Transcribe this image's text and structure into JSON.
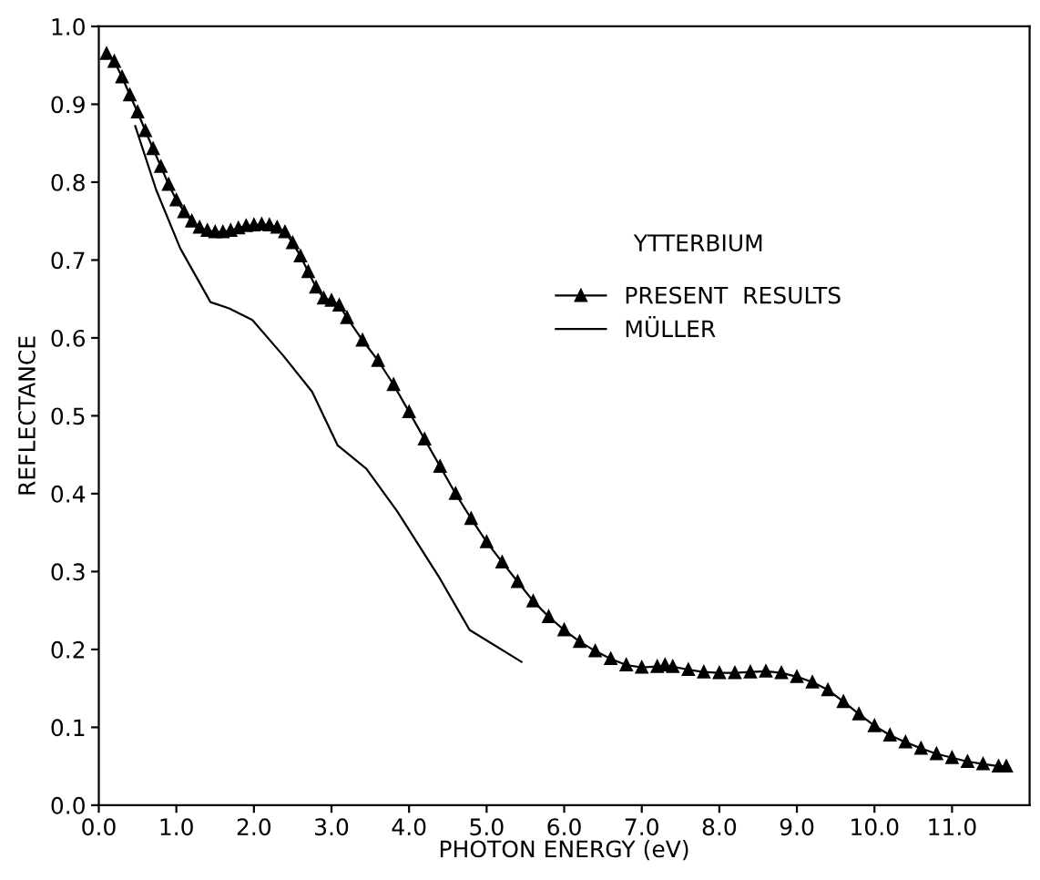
{
  "chart_data": {
    "type": "line",
    "xlabel": "PHOTON ENERGY (eV)",
    "ylabel": "REFLECTANCE",
    "legend_title": "YTTERBIUM",
    "legend": "top right",
    "grid": false,
    "xlim": [
      0,
      12
    ],
    "ylim": [
      0,
      1.0
    ],
    "xticks": [
      {
        "value": 0,
        "label": "0.0"
      },
      {
        "value": 1,
        "label": "1.0"
      },
      {
        "value": 2,
        "label": "2.0"
      },
      {
        "value": 3,
        "label": "3.0"
      },
      {
        "value": 4,
        "label": "4.0"
      },
      {
        "value": 5,
        "label": "5.0"
      },
      {
        "value": 6,
        "label": "6.0"
      },
      {
        "value": 7,
        "label": "7.0"
      },
      {
        "value": 8,
        "label": "8.0"
      },
      {
        "value": 9,
        "label": "9.0"
      },
      {
        "value": 10,
        "label": "10.0"
      },
      {
        "value": 11,
        "label": "11.0"
      }
    ],
    "yticks": [
      {
        "value": 0,
        "label": "0.0"
      },
      {
        "value": 0.1,
        "label": "0.1"
      },
      {
        "value": 0.2,
        "label": "0.2"
      },
      {
        "value": 0.3,
        "label": "0.3"
      },
      {
        "value": 0.4,
        "label": "0.4"
      },
      {
        "value": 0.5,
        "label": "0.5"
      },
      {
        "value": 0.6,
        "label": "0.6"
      },
      {
        "value": 0.7,
        "label": "0.7"
      },
      {
        "value": 0.8,
        "label": "0.8"
      },
      {
        "value": 0.9,
        "label": "0.9"
      },
      {
        "value": 1.0,
        "label": "1.0"
      }
    ],
    "series": [
      {
        "name": "PRESENT  RESULTS",
        "color": "#000000",
        "marker": "triangle",
        "line_style": "solid",
        "x": [
          0.1,
          0.2,
          0.3,
          0.4,
          0.5,
          0.6,
          0.7,
          0.8,
          0.9,
          1.0,
          1.1,
          1.2,
          1.3,
          1.4,
          1.5,
          1.6,
          1.7,
          1.8,
          1.9,
          2.0,
          2.1,
          2.2,
          2.3,
          2.4,
          2.5,
          2.6,
          2.7,
          2.8,
          2.9,
          3.0,
          3.1,
          3.2,
          3.4,
          3.6,
          3.8,
          4.0,
          4.2,
          4.4,
          4.6,
          4.8,
          5.0,
          5.2,
          5.4,
          5.6,
          5.8,
          6.0,
          6.2,
          6.4,
          6.6,
          6.8,
          7.0,
          7.2,
          7.3,
          7.4,
          7.6,
          7.8,
          8.0,
          8.2,
          8.4,
          8.6,
          8.8,
          9.0,
          9.2,
          9.4,
          9.6,
          9.8,
          10.0,
          10.2,
          10.4,
          10.6,
          10.8,
          11.0,
          11.2,
          11.4,
          11.6,
          11.7
        ],
        "values": [
          0.965,
          0.955,
          0.935,
          0.912,
          0.89,
          0.866,
          0.843,
          0.82,
          0.797,
          0.777,
          0.762,
          0.75,
          0.742,
          0.738,
          0.736,
          0.736,
          0.738,
          0.741,
          0.744,
          0.745,
          0.746,
          0.745,
          0.742,
          0.736,
          0.722,
          0.705,
          0.685,
          0.665,
          0.651,
          0.648,
          0.642,
          0.626,
          0.597,
          0.571,
          0.54,
          0.505,
          0.47,
          0.435,
          0.4,
          0.368,
          0.338,
          0.312,
          0.287,
          0.262,
          0.242,
          0.225,
          0.21,
          0.198,
          0.188,
          0.18,
          0.177,
          0.178,
          0.18,
          0.178,
          0.174,
          0.171,
          0.17,
          0.17,
          0.171,
          0.172,
          0.17,
          0.165,
          0.158,
          0.148,
          0.133,
          0.117,
          0.102,
          0.09,
          0.081,
          0.073,
          0.066,
          0.061,
          0.056,
          0.053,
          0.05,
          0.05
        ]
      },
      {
        "name": "MÜLLER",
        "color": "#000000",
        "marker": "none",
        "line_style": "solid",
        "x": [
          0.47,
          0.74,
          1.05,
          1.44,
          1.68,
          1.98,
          2.38,
          2.75,
          3.08,
          3.45,
          3.85,
          4.38,
          4.78,
          5.45
        ],
        "values": [
          0.872,
          0.79,
          0.715,
          0.646,
          0.638,
          0.623,
          0.577,
          0.531,
          0.462,
          0.432,
          0.377,
          0.294,
          0.225,
          0.184
        ]
      }
    ]
  }
}
